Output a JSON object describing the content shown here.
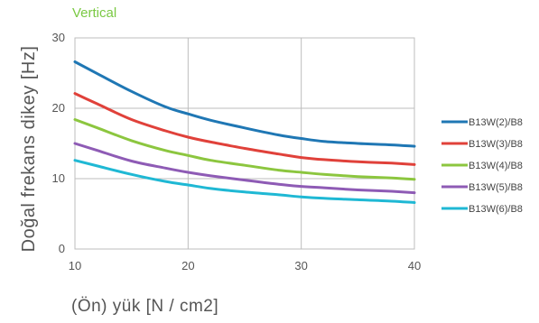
{
  "chart_data": {
    "type": "line",
    "title": "Vertical",
    "xlabel": "(Ön) yük [N / cm2]",
    "ylabel": "Doğal frekans dikey [Hz]",
    "xlim": [
      10,
      40
    ],
    "ylim": [
      0,
      30
    ],
    "xticks": [
      10,
      20,
      30,
      40
    ],
    "yticks": [
      0,
      10,
      20,
      30
    ],
    "grid": true,
    "legend_position": "right",
    "series": [
      {
        "name": "B13W(2)/B8",
        "color": "#1f77b4",
        "points": [
          [
            10,
            26.6
          ],
          [
            12,
            24.9
          ],
          [
            15,
            22.4
          ],
          [
            18,
            20.2
          ],
          [
            20,
            19.2
          ],
          [
            22,
            18.3
          ],
          [
            25,
            17.2
          ],
          [
            28,
            16.2
          ],
          [
            30,
            15.7
          ],
          [
            32,
            15.3
          ],
          [
            35,
            15.0
          ],
          [
            38,
            14.8
          ],
          [
            40,
            14.6
          ]
        ]
      },
      {
        "name": "B13W(3)/B8",
        "color": "#e0413a",
        "points": [
          [
            10,
            22.1
          ],
          [
            12,
            20.6
          ],
          [
            15,
            18.4
          ],
          [
            18,
            16.8
          ],
          [
            20,
            15.9
          ],
          [
            22,
            15.2
          ],
          [
            25,
            14.3
          ],
          [
            28,
            13.5
          ],
          [
            30,
            13.0
          ],
          [
            32,
            12.7
          ],
          [
            35,
            12.4
          ],
          [
            38,
            12.2
          ],
          [
            40,
            12.0
          ]
        ]
      },
      {
        "name": "B13W(4)/B8",
        "color": "#8cc63f",
        "points": [
          [
            10,
            18.4
          ],
          [
            12,
            17.2
          ],
          [
            15,
            15.4
          ],
          [
            18,
            14.0
          ],
          [
            20,
            13.3
          ],
          [
            22,
            12.6
          ],
          [
            25,
            11.9
          ],
          [
            28,
            11.2
          ],
          [
            30,
            10.9
          ],
          [
            32,
            10.6
          ],
          [
            35,
            10.3
          ],
          [
            38,
            10.1
          ],
          [
            40,
            9.9
          ]
        ]
      },
      {
        "name": "B13W(5)/B8",
        "color": "#8e5bb5",
        "points": [
          [
            10,
            15.0
          ],
          [
            12,
            14.0
          ],
          [
            15,
            12.5
          ],
          [
            18,
            11.5
          ],
          [
            20,
            10.9
          ],
          [
            22,
            10.4
          ],
          [
            25,
            9.8
          ],
          [
            28,
            9.2
          ],
          [
            30,
            8.9
          ],
          [
            32,
            8.7
          ],
          [
            35,
            8.4
          ],
          [
            38,
            8.2
          ],
          [
            40,
            8.0
          ]
        ]
      },
      {
        "name": "B13W(6)/B8",
        "color": "#1fb8d4",
        "points": [
          [
            10,
            12.6
          ],
          [
            12,
            11.8
          ],
          [
            15,
            10.6
          ],
          [
            18,
            9.6
          ],
          [
            20,
            9.1
          ],
          [
            22,
            8.6
          ],
          [
            25,
            8.1
          ],
          [
            28,
            7.7
          ],
          [
            30,
            7.4
          ],
          [
            32,
            7.2
          ],
          [
            35,
            7.0
          ],
          [
            38,
            6.8
          ],
          [
            40,
            6.6
          ]
        ]
      }
    ]
  }
}
